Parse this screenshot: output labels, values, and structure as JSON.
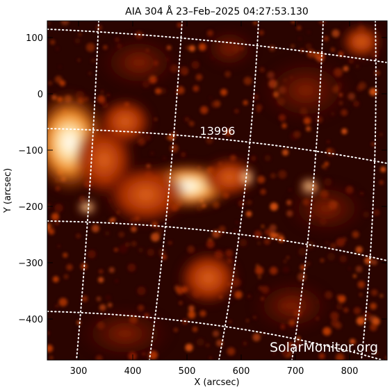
{
  "title": "AIA 304 Å 23–Feb–2025 04:27:53.130",
  "xlabel": "X (arcsec)",
  "ylabel": "Y (arcsec)",
  "xticks": [
    "300",
    "400",
    "500",
    "600",
    "700",
    "800"
  ],
  "yticks": [
    "100",
    "0",
    "−100",
    "−200",
    "−300",
    "−400"
  ],
  "region_label": "13996",
  "watermark": "SolarMonitor.org",
  "colors": {
    "background": "#2a0400",
    "emission_mid": "#a32a00",
    "emission_hot": "#ffc060",
    "emission_peak": "#ffffff",
    "grid": "#ffffff"
  }
}
